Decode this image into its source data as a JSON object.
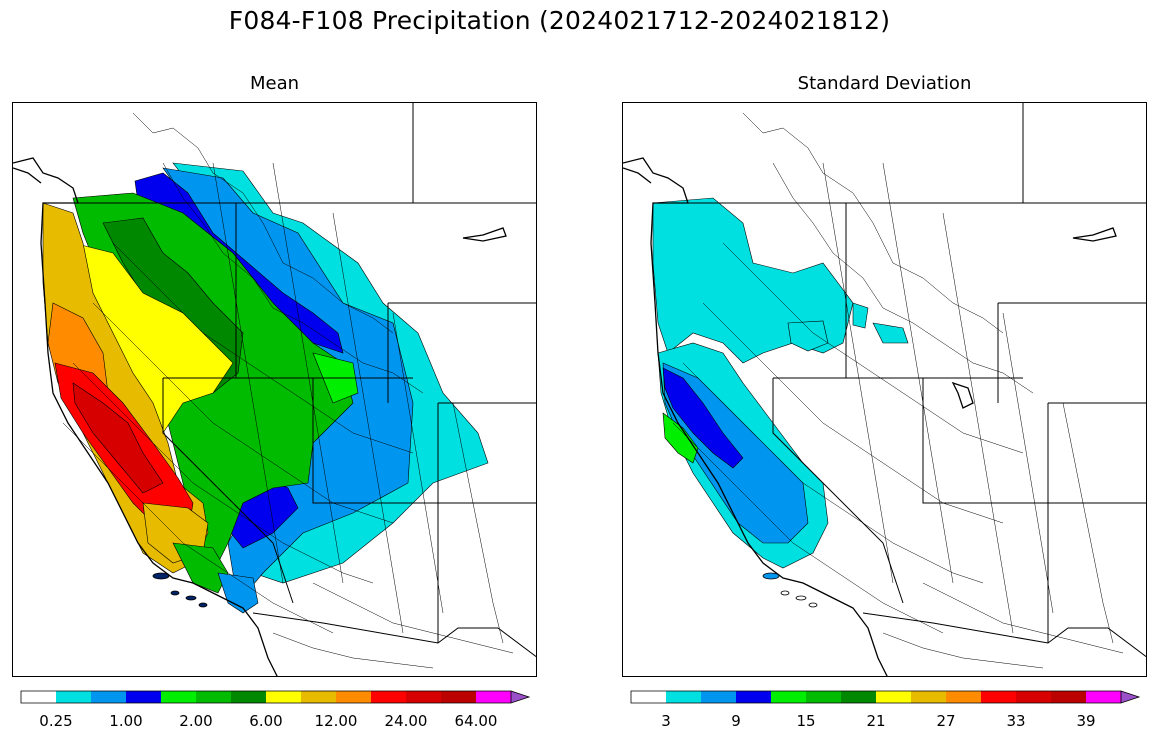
{
  "title": "F084-F108 Precipitation (2024021712-2024021812)",
  "panels": [
    {
      "id": "mean",
      "title": "Mean",
      "colorbar": {
        "colors": [
          "#ffffff",
          "#00e0e0",
          "#0096f0",
          "#0000ee",
          "#00ee00",
          "#00bb00",
          "#008800",
          "#ffff00",
          "#e6bb00",
          "#ff8c00",
          "#ff0000",
          "#d70000",
          "#bb0000",
          "#ff00ff",
          "#9a50c8"
        ],
        "tick_labels": [
          "0.25",
          "1.00",
          "2.00",
          "6.00",
          "12.00",
          "24.00",
          "64.00"
        ]
      }
    },
    {
      "id": "stddev",
      "title": "Standard Deviation",
      "colorbar": {
        "colors": [
          "#ffffff",
          "#00e0e0",
          "#0096f0",
          "#0000ee",
          "#00ee00",
          "#00bb00",
          "#008800",
          "#ffff00",
          "#e6bb00",
          "#ff8c00",
          "#ff0000",
          "#d70000",
          "#bb0000",
          "#ff00ff",
          "#9a50c8"
        ],
        "tick_labels": [
          "3",
          "9",
          "15",
          "21",
          "27",
          "33",
          "39"
        ]
      }
    }
  ]
}
